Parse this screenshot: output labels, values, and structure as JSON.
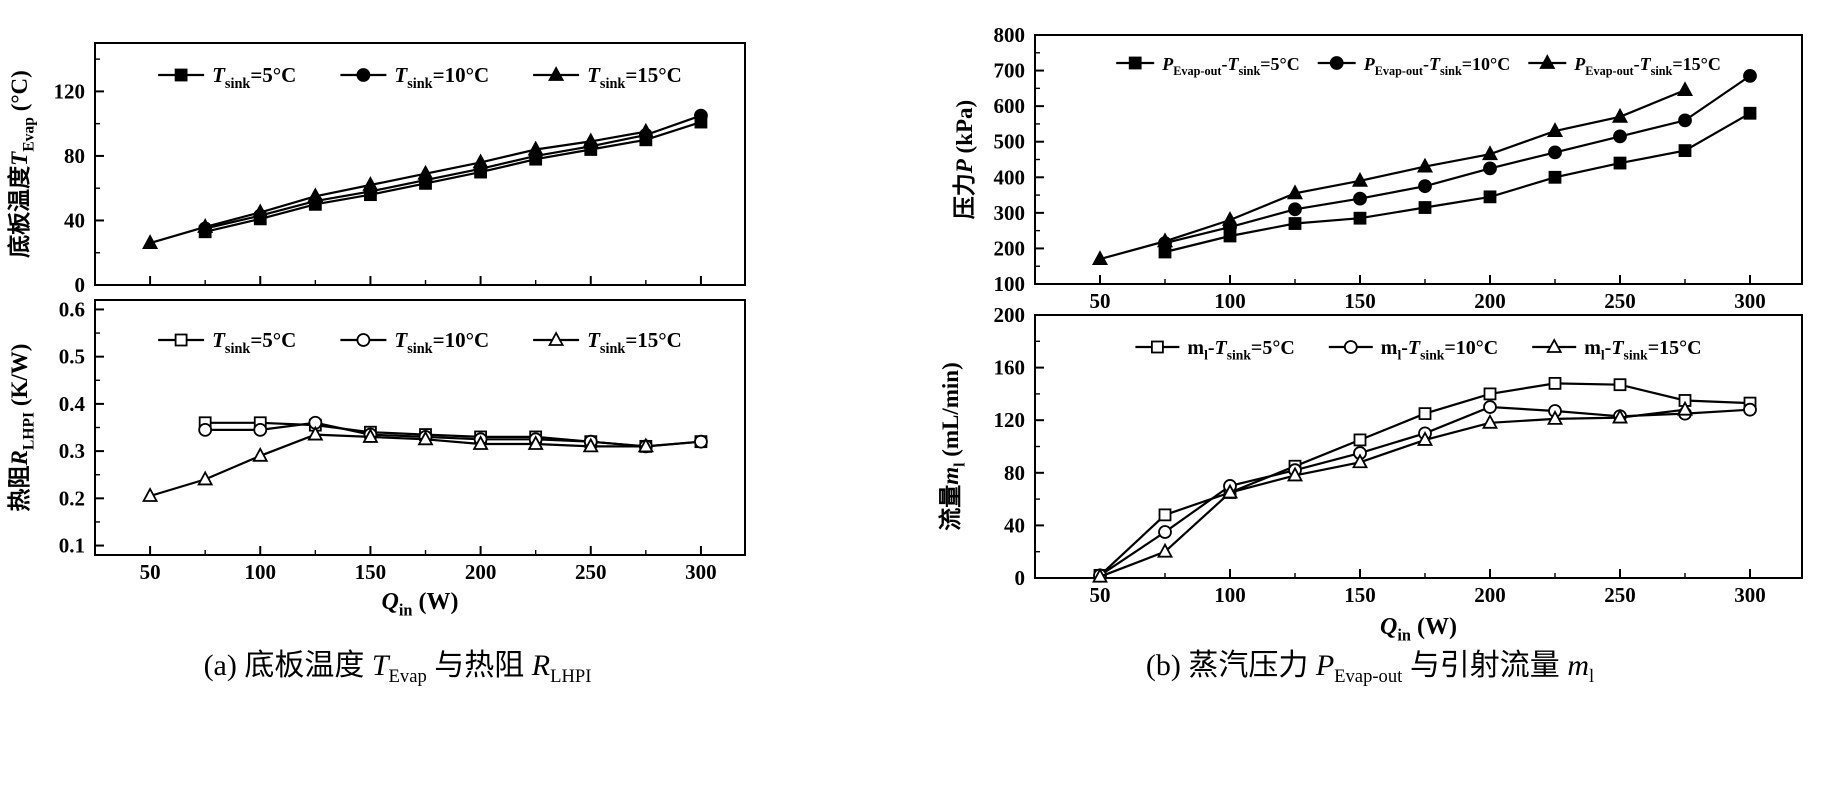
{
  "figure": {
    "captions": {
      "a": "(a) 底板温度 *T*_{Evap} 与热阻 *R*_{LHPI}",
      "b": "(b) 蒸汽压力 *P*_{Evap-out} 与引射流量 *m*_{l}"
    }
  },
  "chart_data": [
    {
      "id": "temperature",
      "type": "line",
      "title": "",
      "xlabel": "",
      "ylabel": "底板温度*T*_{Evap} (°C)",
      "xlim": [
        25,
        320
      ],
      "ylim": [
        0,
        150
      ],
      "xticks": [
        50,
        100,
        150,
        200,
        250,
        300
      ],
      "xminor": [
        75,
        125,
        175,
        225,
        275
      ],
      "yticks": [
        0,
        40,
        80,
        120
      ],
      "yminor": [
        20,
        60,
        100,
        140
      ],
      "show_xtick_labels": false,
      "legend_position": "top-center",
      "x": [
        50,
        75,
        100,
        125,
        150,
        175,
        200,
        225,
        250,
        275,
        300
      ],
      "series": [
        {
          "name": "*T*_{sink}=5°C",
          "marker": "square-filled",
          "values": [
            null,
            33,
            41,
            50,
            56,
            63,
            70,
            78,
            84,
            90,
            101
          ]
        },
        {
          "name": "*T*_{sink}=10°C",
          "marker": "circle-filled",
          "values": [
            null,
            35,
            43,
            52,
            58,
            65,
            72,
            80,
            86,
            93,
            105
          ]
        },
        {
          "name": "*T*_{sink}=15°C",
          "marker": "triangle-filled",
          "values": [
            26,
            36,
            45,
            55,
            62,
            69,
            76,
            84,
            89,
            95,
            null
          ]
        }
      ]
    },
    {
      "id": "resistance",
      "type": "line",
      "title": "",
      "xlabel": "*Q*_{in} (W)",
      "ylabel": "热阻*R*_{LHPI} (K/W)",
      "xlim": [
        25,
        320
      ],
      "ylim": [
        0.08,
        0.62
      ],
      "xticks": [
        50,
        100,
        150,
        200,
        250,
        300
      ],
      "xminor": [
        75,
        125,
        175,
        225,
        275
      ],
      "yticks": [
        0.1,
        0.2,
        0.3,
        0.4,
        0.5,
        0.6
      ],
      "yminor": [
        0.15,
        0.25,
        0.35,
        0.45,
        0.55
      ],
      "show_xtick_labels": true,
      "legend_position": "top-center",
      "x": [
        50,
        75,
        100,
        125,
        150,
        175,
        200,
        225,
        250,
        275,
        300
      ],
      "series": [
        {
          "name": "*T*_{sink}=5°C",
          "marker": "square-open",
          "values": [
            null,
            0.36,
            0.36,
            0.355,
            0.34,
            0.335,
            0.33,
            0.33,
            0.32,
            0.31,
            0.32
          ]
        },
        {
          "name": "*T*_{sink}=10°C",
          "marker": "circle-open",
          "values": [
            null,
            0.345,
            0.345,
            0.36,
            0.335,
            0.33,
            0.325,
            0.325,
            0.32,
            0.31,
            0.32
          ]
        },
        {
          "name": "*T*_{sink}=15°C",
          "marker": "triangle-open",
          "values": [
            0.205,
            0.24,
            0.29,
            0.335,
            0.33,
            0.325,
            0.315,
            0.315,
            0.31,
            0.31,
            null
          ]
        }
      ]
    },
    {
      "id": "pressure",
      "type": "line",
      "title": "",
      "xlabel": "",
      "ylabel": "压力*P* (kPa)",
      "xlim": [
        25,
        320
      ],
      "ylim": [
        100,
        800
      ],
      "xticks": [
        50,
        100,
        150,
        200,
        250,
        300
      ],
      "xminor": [
        75,
        125,
        175,
        225,
        275
      ],
      "yticks": [
        100,
        200,
        300,
        400,
        500,
        600,
        700,
        800
      ],
      "yminor": [
        150,
        250,
        350,
        450,
        550,
        650,
        750
      ],
      "show_xtick_labels": true,
      "legend_position": "top-center",
      "x": [
        50,
        75,
        100,
        125,
        150,
        175,
        200,
        225,
        250,
        275,
        300
      ],
      "series": [
        {
          "name": "*P*_{Evap-out}-*T*_{sink}=5°C",
          "marker": "square-filled",
          "values": [
            null,
            190,
            235,
            270,
            285,
            315,
            345,
            400,
            440,
            475,
            580
          ]
        },
        {
          "name": "*P*_{Evap-out}-*T*_{sink}=10°C",
          "marker": "circle-filled",
          "values": [
            null,
            215,
            260,
            310,
            340,
            375,
            425,
            470,
            515,
            560,
            685
          ]
        },
        {
          "name": "*P*_{Evap-out}-*T*_{sink}=15°C",
          "marker": "triangle-filled",
          "values": [
            170,
            220,
            280,
            355,
            390,
            430,
            465,
            530,
            570,
            645,
            null
          ]
        }
      ]
    },
    {
      "id": "flow",
      "type": "line",
      "title": "",
      "xlabel": "*Q*_{in} (W)",
      "ylabel": "流量*m*_{l} (mL/min)",
      "xlim": [
        25,
        320
      ],
      "ylim": [
        0,
        200
      ],
      "xticks": [
        50,
        100,
        150,
        200,
        250,
        300
      ],
      "xminor": [
        75,
        125,
        175,
        225,
        275
      ],
      "yticks": [
        0,
        40,
        80,
        120,
        160,
        200
      ],
      "yminor": [
        20,
        60,
        100,
        140,
        180
      ],
      "show_xtick_labels": true,
      "legend_position": "top-center",
      "x": [
        50,
        75,
        100,
        125,
        150,
        175,
        200,
        225,
        250,
        275,
        300
      ],
      "series": [
        {
          "name": "m_{l}-*T*_{sink}=5°C",
          "marker": "square-open",
          "values": [
            2,
            48,
            65,
            85,
            105,
            125,
            140,
            148,
            147,
            135,
            133
          ]
        },
        {
          "name": "m_{l}-*T*_{sink}=10°C",
          "marker": "circle-open",
          "values": [
            2,
            35,
            70,
            82,
            95,
            110,
            130,
            127,
            123,
            125,
            128
          ]
        },
        {
          "name": "m_{l}-*T*_{sink}=15°C",
          "marker": "triangle-open",
          "values": [
            1,
            20,
            65,
            78,
            88,
            105,
            118,
            121,
            122,
            128,
            null
          ]
        }
      ]
    }
  ]
}
